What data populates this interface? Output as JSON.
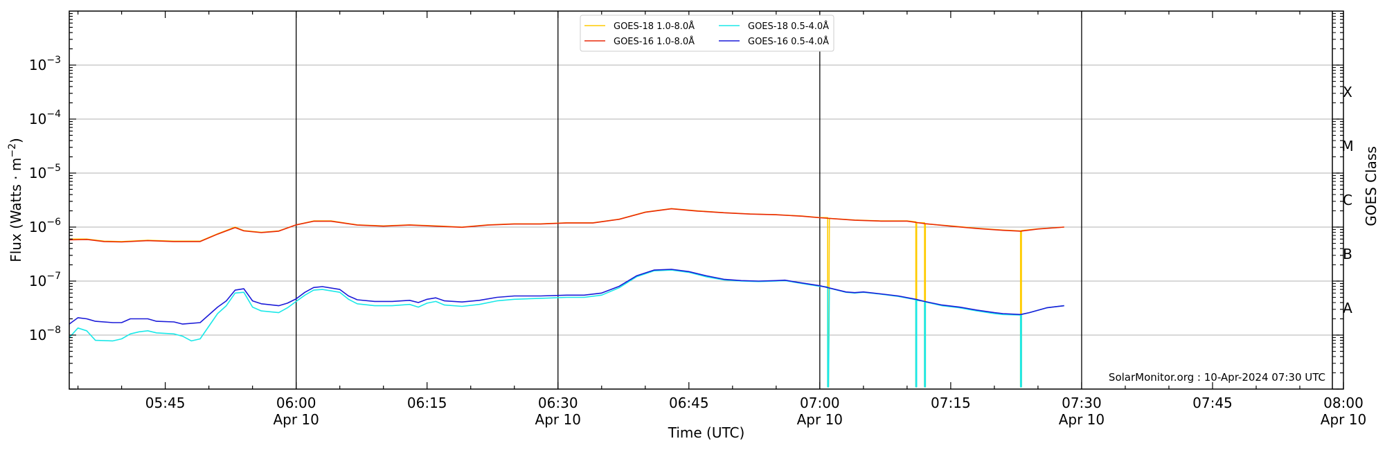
{
  "chart_data": {
    "type": "line",
    "xlabel": "Time (UTC)",
    "ylabel_main": "Flux (Watts · m",
    "ylabel_sup": "−2",
    "ylabel_close": ")",
    "right_label": "GOES Class",
    "credit": "SolarMonitor.org : 10-Apr-2024 07:30 UTC",
    "ylim_exp": [
      -9,
      -2
    ],
    "xlim_min": [
      334,
      480
    ],
    "grid": "horizontal",
    "legend_position": "top-center",
    "yticks": [
      {
        "exp": -8,
        "base": "10",
        "power": "−8"
      },
      {
        "exp": -7,
        "base": "10",
        "power": "−7"
      },
      {
        "exp": -6,
        "base": "10",
        "power": "−6"
      },
      {
        "exp": -5,
        "base": "10",
        "power": "−5"
      },
      {
        "exp": -4,
        "base": "10",
        "power": "−4"
      },
      {
        "exp": -3,
        "base": "10",
        "power": "−3"
      }
    ],
    "xticks": [
      {
        "min": 345,
        "time": "05:45",
        "date": ""
      },
      {
        "min": 360,
        "time": "06:00",
        "date": "Apr 10"
      },
      {
        "min": 375,
        "time": "06:15",
        "date": ""
      },
      {
        "min": 390,
        "time": "06:30",
        "date": "Apr 10"
      },
      {
        "min": 405,
        "time": "06:45",
        "date": ""
      },
      {
        "min": 420,
        "time": "07:00",
        "date": "Apr 10"
      },
      {
        "min": 435,
        "time": "07:15",
        "date": ""
      },
      {
        "min": 450,
        "time": "07:30",
        "date": "Apr 10"
      },
      {
        "min": 465,
        "time": "07:45",
        "date": ""
      },
      {
        "min": 480,
        "time": "08:00",
        "date": "Apr 10"
      }
    ],
    "vlines_min": [
      360,
      390,
      420,
      450
    ],
    "goes_classes": [
      {
        "label": "A",
        "exp": -7.5
      },
      {
        "label": "B",
        "exp": -6.5
      },
      {
        "label": "C",
        "exp": -5.5
      },
      {
        "label": "M",
        "exp": -4.5
      },
      {
        "label": "X",
        "exp": -3.5
      }
    ],
    "series": [
      {
        "name": "GOES-18 1.0-8.0Å",
        "color": "#ffcc00",
        "points": [
          [
            334,
            6e-07
          ],
          [
            336,
            6e-07
          ],
          [
            338,
            5.5e-07
          ],
          [
            340,
            5.4e-07
          ],
          [
            343,
            5.7e-07
          ],
          [
            346,
            5.5e-07
          ],
          [
            349,
            5.5e-07
          ],
          [
            351,
            7.5e-07
          ],
          [
            353,
            1e-06
          ],
          [
            354,
            8.6e-07
          ],
          [
            356,
            8e-07
          ],
          [
            358,
            8.5e-07
          ],
          [
            360,
            1.1e-06
          ],
          [
            362,
            1.3e-06
          ],
          [
            364,
            1.3e-06
          ],
          [
            367,
            1.1e-06
          ],
          [
            370,
            1.05e-06
          ],
          [
            373,
            1.1e-06
          ],
          [
            376,
            1.05e-06
          ],
          [
            379,
            1e-06
          ],
          [
            382,
            1.1e-06
          ],
          [
            385,
            1.15e-06
          ],
          [
            388,
            1.15e-06
          ],
          [
            391,
            1.2e-06
          ],
          [
            394,
            1.2e-06
          ],
          [
            397,
            1.4e-06
          ],
          [
            400,
            1.9e-06
          ],
          [
            403,
            2.2e-06
          ],
          [
            406,
            2e-06
          ],
          [
            409,
            1.85e-06
          ],
          [
            412,
            1.75e-06
          ],
          [
            415,
            1.7e-06
          ],
          [
            418,
            1.6e-06
          ],
          [
            420,
            1.5e-06
          ],
          [
            420.9,
            1.5e-06
          ],
          [
            420.9,
            1.1e-09
          ],
          [
            421.0,
            1.1e-09
          ],
          [
            421.1,
            1.45e-06
          ],
          [
            424,
            1.35e-06
          ],
          [
            427,
            1.3e-06
          ],
          [
            430,
            1.3e-06
          ],
          [
            431.0,
            1.25e-06
          ],
          [
            431.0,
            1.1e-09
          ],
          [
            431.1,
            1.1e-09
          ],
          [
            431.1,
            1.2e-06
          ],
          [
            432.0,
            1.2e-06
          ],
          [
            432.0,
            1.1e-09
          ],
          [
            432.1,
            1.1e-09
          ],
          [
            432.1,
            1.15e-06
          ],
          [
            435,
            1.05e-06
          ],
          [
            438,
            9.5e-07
          ],
          [
            441,
            8.8e-07
          ],
          [
            443,
            8.5e-07
          ],
          [
            443.0,
            1.1e-09
          ],
          [
            443.1,
            1.1e-09
          ],
          [
            443.1,
            8.6e-07
          ],
          [
            445,
            9.3e-07
          ],
          [
            448,
            1e-06
          ]
        ]
      },
      {
        "name": "GOES-16 1.0-8.0Å",
        "color": "#e8280a",
        "points": [
          [
            334,
            5.8e-07
          ],
          [
            336,
            5.9e-07
          ],
          [
            338,
            5.4e-07
          ],
          [
            340,
            5.3e-07
          ],
          [
            343,
            5.6e-07
          ],
          [
            346,
            5.4e-07
          ],
          [
            349,
            5.4e-07
          ],
          [
            351,
            7.4e-07
          ],
          [
            353,
            9.8e-07
          ],
          [
            354,
            8.5e-07
          ],
          [
            356,
            7.9e-07
          ],
          [
            358,
            8.4e-07
          ],
          [
            360,
            1.1e-06
          ],
          [
            362,
            1.28e-06
          ],
          [
            364,
            1.28e-06
          ],
          [
            367,
            1.09e-06
          ],
          [
            370,
            1.04e-06
          ],
          [
            373,
            1.09e-06
          ],
          [
            376,
            1.04e-06
          ],
          [
            379,
            9.9e-07
          ],
          [
            382,
            1.09e-06
          ],
          [
            385,
            1.14e-06
          ],
          [
            388,
            1.14e-06
          ],
          [
            391,
            1.19e-06
          ],
          [
            394,
            1.19e-06
          ],
          [
            397,
            1.39e-06
          ],
          [
            400,
            1.88e-06
          ],
          [
            403,
            2.18e-06
          ],
          [
            406,
            1.98e-06
          ],
          [
            409,
            1.84e-06
          ],
          [
            412,
            1.74e-06
          ],
          [
            415,
            1.69e-06
          ],
          [
            418,
            1.59e-06
          ],
          [
            420,
            1.49e-06
          ],
          [
            424,
            1.34e-06
          ],
          [
            427,
            1.29e-06
          ],
          [
            430,
            1.29e-06
          ],
          [
            432,
            1.16e-06
          ],
          [
            435,
            1.04e-06
          ],
          [
            438,
            9.4e-07
          ],
          [
            441,
            8.7e-07
          ],
          [
            443,
            8.4e-07
          ],
          [
            445,
            9.2e-07
          ],
          [
            448,
            1e-06
          ]
        ]
      },
      {
        "name": "GOES-18 0.5-4.0Å",
        "color": "#1ae8e8",
        "points": [
          [
            334,
            9e-09
          ],
          [
            335,
            1.35e-08
          ],
          [
            336,
            1.2e-08
          ],
          [
            337,
            8e-09
          ],
          [
            339,
            7.8e-09
          ],
          [
            340,
            8.5e-09
          ],
          [
            341,
            1.05e-08
          ],
          [
            342,
            1.15e-08
          ],
          [
            343,
            1.2e-08
          ],
          [
            344,
            1.1e-08
          ],
          [
            346,
            1.05e-08
          ],
          [
            347,
            9.5e-09
          ],
          [
            348,
            7.8e-09
          ],
          [
            349,
            8.5e-09
          ],
          [
            351,
            2.5e-08
          ],
          [
            352,
            3.5e-08
          ],
          [
            353,
            6e-08
          ],
          [
            354,
            6.2e-08
          ],
          [
            355,
            3.3e-08
          ],
          [
            356,
            2.8e-08
          ],
          [
            358,
            2.6e-08
          ],
          [
            359,
            3.2e-08
          ],
          [
            360,
            4.2e-08
          ],
          [
            361,
            5.5e-08
          ],
          [
            362,
            6.8e-08
          ],
          [
            363,
            7e-08
          ],
          [
            365,
            6.2e-08
          ],
          [
            366,
            4.6e-08
          ],
          [
            367,
            3.8e-08
          ],
          [
            369,
            3.5e-08
          ],
          [
            371,
            3.5e-08
          ],
          [
            373,
            3.7e-08
          ],
          [
            374,
            3.3e-08
          ],
          [
            375,
            3.9e-08
          ],
          [
            376,
            4.2e-08
          ],
          [
            377,
            3.6e-08
          ],
          [
            379,
            3.4e-08
          ],
          [
            381,
            3.7e-08
          ],
          [
            383,
            4.3e-08
          ],
          [
            385,
            4.6e-08
          ],
          [
            388,
            4.8e-08
          ],
          [
            391,
            5e-08
          ],
          [
            393,
            5e-08
          ],
          [
            395,
            5.5e-08
          ],
          [
            397,
            7.5e-08
          ],
          [
            399,
            1.2e-07
          ],
          [
            401,
            1.55e-07
          ],
          [
            403,
            1.6e-07
          ],
          [
            405,
            1.45e-07
          ],
          [
            407,
            1.2e-07
          ],
          [
            409,
            1.05e-07
          ],
          [
            411,
            1e-07
          ],
          [
            413,
            9.8e-08
          ],
          [
            415,
            1e-07
          ],
          [
            416,
            1.02e-07
          ],
          [
            418,
            9e-08
          ],
          [
            420,
            8e-08
          ],
          [
            420.9,
            7.8e-08
          ],
          [
            420.9,
            1.1e-09
          ],
          [
            421.0,
            1.1e-09
          ],
          [
            421.1,
            7.4e-08
          ],
          [
            423,
            6.2e-08
          ],
          [
            424,
            6e-08
          ],
          [
            425,
            6.2e-08
          ],
          [
            427,
            5.7e-08
          ],
          [
            429,
            5.2e-08
          ],
          [
            431,
            4.5e-08
          ],
          [
            431.0,
            1.1e-09
          ],
          [
            431.1,
            1.1e-09
          ],
          [
            431.1,
            4.4e-08
          ],
          [
            432.0,
            4.2e-08
          ],
          [
            432.0,
            1.1e-09
          ],
          [
            432.1,
            1.1e-09
          ],
          [
            432.1,
            4.1e-08
          ],
          [
            434,
            3.5e-08
          ],
          [
            436,
            3.2e-08
          ],
          [
            438,
            2.8e-08
          ],
          [
            440,
            2.5e-08
          ],
          [
            441,
            2.4e-08
          ],
          [
            443,
            2.35e-08
          ],
          [
            443.0,
            1.1e-09
          ],
          [
            443.1,
            1.1e-09
          ],
          [
            443.1,
            2.4e-08
          ],
          [
            444,
            2.6e-08
          ],
          [
            446,
            3.2e-08
          ],
          [
            448,
            3.5e-08
          ]
        ]
      },
      {
        "name": "GOES-16 0.5-4.0Å",
        "color": "#1a1ad8",
        "points": [
          [
            334,
            1.6e-08
          ],
          [
            335,
            2.1e-08
          ],
          [
            336,
            2e-08
          ],
          [
            337,
            1.8e-08
          ],
          [
            339,
            1.7e-08
          ],
          [
            340,
            1.7e-08
          ],
          [
            341,
            2e-08
          ],
          [
            343,
            2e-08
          ],
          [
            344,
            1.8e-08
          ],
          [
            346,
            1.75e-08
          ],
          [
            347,
            1.6e-08
          ],
          [
            349,
            1.7e-08
          ],
          [
            351,
            3.3e-08
          ],
          [
            352,
            4.3e-08
          ],
          [
            353,
            6.8e-08
          ],
          [
            354,
            7.2e-08
          ],
          [
            355,
            4.3e-08
          ],
          [
            356,
            3.8e-08
          ],
          [
            358,
            3.5e-08
          ],
          [
            359,
            3.9e-08
          ],
          [
            360,
            4.7e-08
          ],
          [
            361,
            6.2e-08
          ],
          [
            362,
            7.6e-08
          ],
          [
            363,
            7.9e-08
          ],
          [
            365,
            7e-08
          ],
          [
            366,
            5.3e-08
          ],
          [
            367,
            4.5e-08
          ],
          [
            369,
            4.2e-08
          ],
          [
            371,
            4.2e-08
          ],
          [
            373,
            4.4e-08
          ],
          [
            374,
            4e-08
          ],
          [
            375,
            4.6e-08
          ],
          [
            376,
            4.9e-08
          ],
          [
            377,
            4.3e-08
          ],
          [
            379,
            4.1e-08
          ],
          [
            381,
            4.4e-08
          ],
          [
            383,
            5e-08
          ],
          [
            385,
            5.3e-08
          ],
          [
            388,
            5.3e-08
          ],
          [
            391,
            5.5e-08
          ],
          [
            393,
            5.5e-08
          ],
          [
            395,
            6e-08
          ],
          [
            397,
            8e-08
          ],
          [
            399,
            1.25e-07
          ],
          [
            401,
            1.6e-07
          ],
          [
            403,
            1.65e-07
          ],
          [
            405,
            1.5e-07
          ],
          [
            407,
            1.25e-07
          ],
          [
            409,
            1.08e-07
          ],
          [
            411,
            1.02e-07
          ],
          [
            413,
            1e-07
          ],
          [
            415,
            1.02e-07
          ],
          [
            416,
            1.04e-07
          ],
          [
            418,
            9.2e-08
          ],
          [
            420,
            8.2e-08
          ],
          [
            423,
            6.3e-08
          ],
          [
            424,
            6.1e-08
          ],
          [
            425,
            6.3e-08
          ],
          [
            427,
            5.8e-08
          ],
          [
            429,
            5.3e-08
          ],
          [
            431,
            4.6e-08
          ],
          [
            432,
            4.2e-08
          ],
          [
            434,
            3.6e-08
          ],
          [
            436,
            3.3e-08
          ],
          [
            438,
            2.9e-08
          ],
          [
            440,
            2.6e-08
          ],
          [
            441,
            2.5e-08
          ],
          [
            443,
            2.4e-08
          ],
          [
            444,
            2.6e-08
          ],
          [
            446,
            3.2e-08
          ],
          [
            448,
            3.5e-08
          ]
        ]
      }
    ]
  }
}
